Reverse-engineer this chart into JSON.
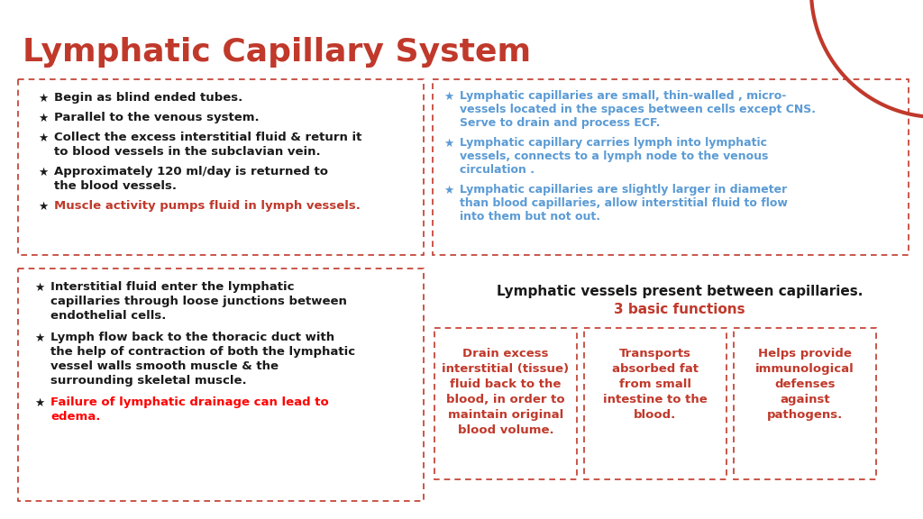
{
  "title": "Lymphatic Capillary System",
  "title_color": "#c0392b",
  "bg_color": "#ffffff",
  "dashed_border_color": "#c0392b",
  "star_black": "★",
  "box1_bullets": [
    {
      "text": "Begin as blind ended tubes.",
      "color": "#1a1a1a",
      "lines": 1
    },
    {
      "text": "Parallel to the venous system.",
      "color": "#1a1a1a",
      "lines": 1
    },
    {
      "text": "Collect the excess interstitial fluid & return it\nto blood vessels in the subclavian vein.",
      "color": "#1a1a1a",
      "lines": 2
    },
    {
      "text": "Approximately 120 ml/day is returned to\nthe blood vessels.",
      "color": "#1a1a1a",
      "lines": 2
    },
    {
      "text": "Muscle activity pumps fluid in lymph vessels.",
      "color": "#c0392b",
      "lines": 1
    }
  ],
  "box2_bullets": [
    {
      "text": "Lymphatic capillaries are small, thin-walled , micro-\nvessels located in the spaces between cells except CNS.\nServe to drain and process ECF.",
      "color": "#5b9bd5",
      "lines": 3
    },
    {
      "text": "Lymphatic capillary carries lymph into lymphatic\nvessels, connects to a lymph node to the venous\ncirculation .",
      "color": "#5b9bd5",
      "lines": 3
    },
    {
      "text": "Lymphatic capillaries are slightly larger in diameter\nthan blood capillaries, allow interstitial fluid to flow\ninto them but not out.",
      "color": "#5b9bd5",
      "lines": 3
    }
  ],
  "box3_bullets": [
    {
      "text": "Interstitial fluid enter the lymphatic\ncapillaries through loose junctions between\nendothelial cells.",
      "color": "#1a1a1a",
      "lines": 3
    },
    {
      "text": "Lymph flow back to the thoracic duct with\nthe help of contraction of both the lymphatic\nvessel walls smooth muscle & the\nsurrounding skeletal muscle.",
      "color": "#1a1a1a",
      "lines": 4
    },
    {
      "text": "Failure of lymphatic drainage can lead to\nedema.",
      "color": "#ff0000",
      "lines": 2
    }
  ],
  "box4_title": "Lymphatic vessels present between capillaries.",
  "box4_subtitle": "3 basic functions",
  "box4_subtitle_color": "#c0392b",
  "box4_col1": "Drain excess\ninterstitial (tissue)\nfluid back to the\nblood, in order to\nmaintain original\nblood volume.",
  "box4_col2": "Transports\nabsorbed fat\nfrom small\nintestine to the\nblood.",
  "box4_col3": "Helps provide\nimmunological\ndefenses\nagainst\npathogens.",
  "box4_text_color": "#c0392b",
  "blue_star_color": "#5b9bd5",
  "arc_color": "#c0392b"
}
